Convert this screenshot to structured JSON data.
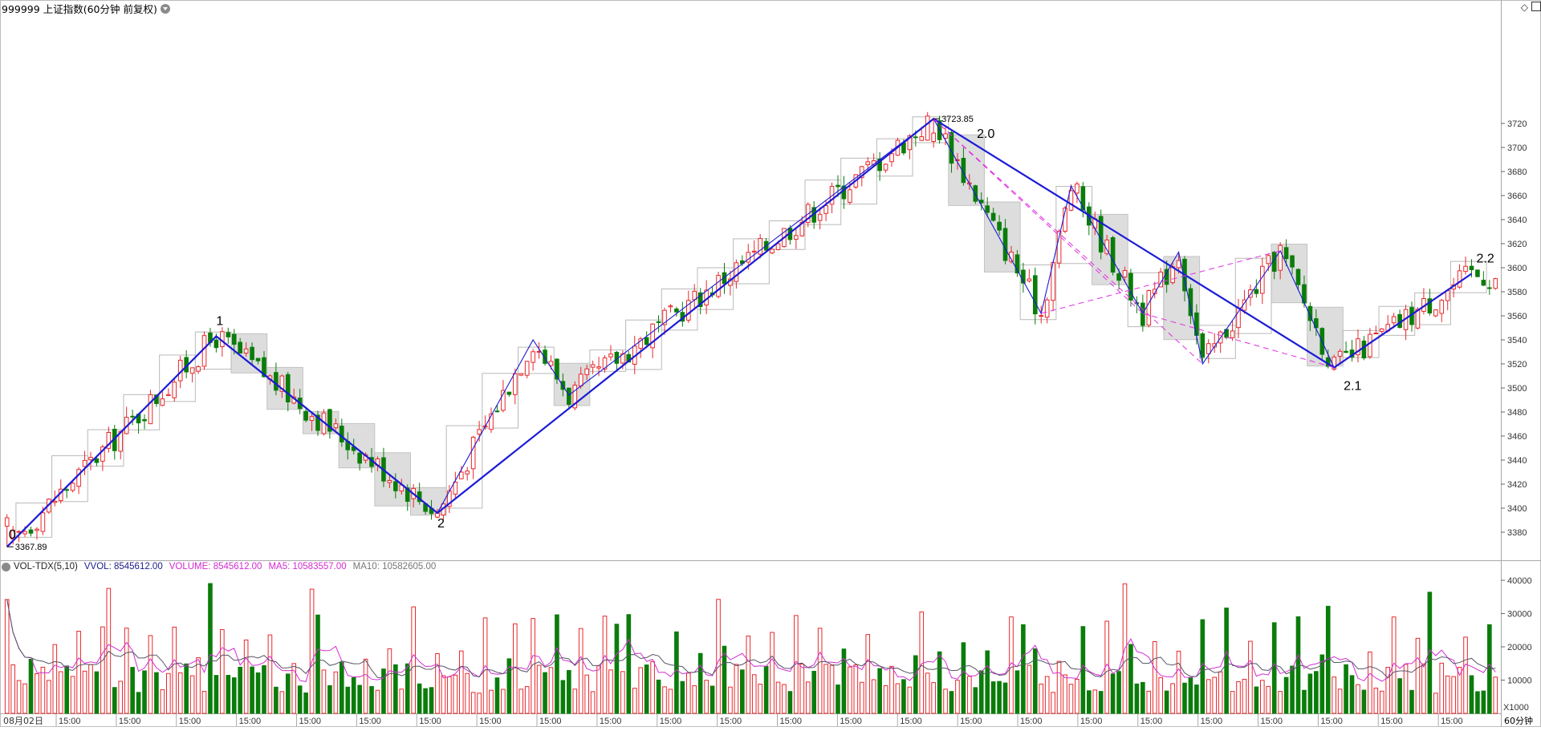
{
  "header": {
    "title": "999999 上证指数(60分钟 前复权)"
  },
  "volume_header": {
    "indicator": "VOL-TDX(5,10)",
    "vvol": "VVOL: 8545612.00",
    "volume": "VOLUME: 8545612.00",
    "ma5": "MA5: 10583557.00",
    "ma10": "MA10: 10582605.00"
  },
  "colors": {
    "up": "#e8282c",
    "down": "#0a7c0a",
    "wave": "#1b1bd6",
    "dashed": "#e02ee0",
    "box": "#b9b9b9",
    "ma5": "#d42dd4",
    "ma10": "#555566"
  },
  "chart_data": [
    {
      "type": "candlestick",
      "price_axis": {
        "ticks": [
          3380,
          3400,
          3420,
          3440,
          3460,
          3480,
          3500,
          3520,
          3540,
          3560,
          3580,
          3600,
          3620,
          3640,
          3660,
          3680,
          3700,
          3720
        ]
      },
      "annotations": [
        {
          "text": "3723.85",
          "price": 3723.85
        },
        {
          "text": "3367.89",
          "price": 3367.89
        }
      ],
      "wave_points": [
        {
          "label": "0",
          "index": 0,
          "price": 3367.89
        },
        {
          "label": "1",
          "index": 35,
          "price": 3543
        },
        {
          "label": "2",
          "index": 72,
          "price": 3396
        },
        {
          "label": "2.0",
          "index": 155,
          "price": 3723.85
        },
        {
          "label": "2.1",
          "index": 222,
          "price": 3517
        },
        {
          "label": "2.2",
          "index": 245,
          "price": 3595
        }
      ],
      "sub_wave_points": [
        {
          "index": 72,
          "price": 3396
        },
        {
          "index": 88,
          "price": 3540
        },
        {
          "index": 94,
          "price": 3494
        },
        {
          "index": 155,
          "price": 3723.85
        },
        {
          "index": 173,
          "price": 3562
        },
        {
          "index": 178,
          "price": 3668
        },
        {
          "index": 190,
          "price": 3562
        },
        {
          "index": 196,
          "price": 3613
        },
        {
          "index": 200,
          "price": 3520
        },
        {
          "index": 213,
          "price": 3614
        },
        {
          "index": 222,
          "price": 3517
        }
      ],
      "x_axis": {
        "first_label": "08月02日",
        "labels": [
          "15:00",
          "15:00",
          "15:00",
          "15:00",
          "15:00",
          "15:00",
          "15:00",
          "15:00",
          "15:00",
          "15:00",
          "15:00",
          "15:00",
          "15:00",
          "15:00",
          "15:00",
          "15:00",
          "15:00",
          "15:00",
          "15:00",
          "15:00",
          "15:00",
          "15:00",
          "15:00",
          "15:00"
        ],
        "period_label": "60分钟"
      }
    },
    {
      "type": "bar",
      "volume_axis": {
        "ticks": [
          10000,
          20000,
          30000,
          40000
        ],
        "unit_label": "X1000"
      },
      "series": [
        {
          "name": "VOLUME"
        },
        {
          "name": "MA5"
        },
        {
          "name": "MA10"
        }
      ]
    }
  ]
}
